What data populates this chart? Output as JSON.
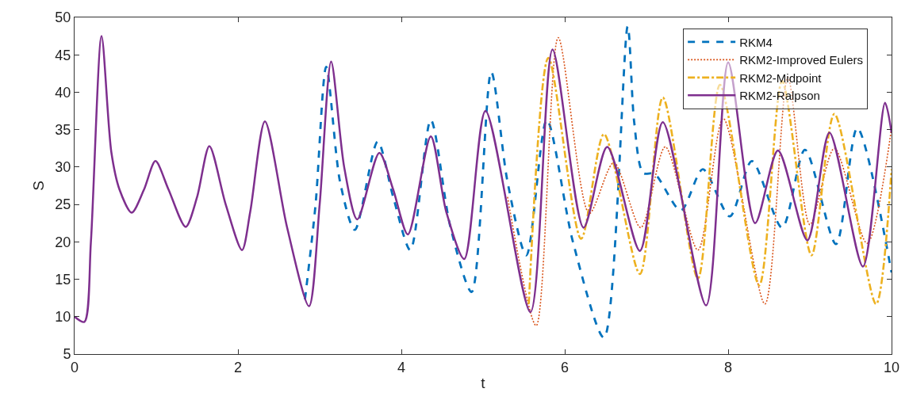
{
  "chart_data": {
    "type": "line",
    "xlabel": "t",
    "ylabel": "S",
    "xlim": [
      0,
      10
    ],
    "ylim": [
      5,
      50
    ],
    "xticks": [
      0,
      2,
      4,
      6,
      8,
      10
    ],
    "yticks": [
      5,
      10,
      15,
      20,
      25,
      30,
      35,
      40,
      45,
      50
    ],
    "grid": false,
    "legend": "top right",
    "marker": "none",
    "series": [
      {
        "name": "RKM4",
        "color": "#0072bd",
        "line_style": "dashed",
        "x": [
          2.82,
          2.95,
          3.08,
          3.25,
          3.43,
          3.71,
          3.9,
          4.11,
          4.36,
          4.6,
          4.86,
          5.1,
          5.3,
          5.53,
          5.78,
          6.1,
          6.48,
          6.77,
          6.85,
          6.96,
          7.1,
          7.42,
          7.69,
          8.02,
          8.29,
          8.66,
          8.94,
          9.32,
          9.58,
          10
        ],
        "values": [
          12.3,
          25,
          43.4,
          28,
          21.6,
          33.4,
          26,
          18.9,
          36.3,
          22,
          13.3,
          42.7,
          28,
          18.2,
          36.3,
          20,
          7.2,
          48.8,
          36,
          29.2,
          29.1,
          24.2,
          29.7,
          23.4,
          30.8,
          21.9,
          32.3,
          19.7,
          35.2,
          15.9
        ]
      },
      {
        "name": "RKM2-Improved Eulers",
        "color": "#d95319",
        "line_style": "dotted",
        "x": [
          5.3,
          5.65,
          5.92,
          6.3,
          6.6,
          6.93,
          7.23,
          7.63,
          7.94,
          8.45,
          8.73,
          9.0,
          9.3,
          9.7,
          10
        ],
        "values": [
          26,
          8.8,
          47.3,
          23.8,
          30.6,
          21.9,
          32.7,
          18.9,
          36.5,
          11.7,
          42,
          22.3,
          32.5,
          19.8,
          35.2
        ]
      },
      {
        "name": "RKM2-Midpoint",
        "color": "#edb120",
        "line_style": "dashdot",
        "x": [
          5.56,
          5.8,
          6.2,
          6.48,
          6.92,
          7.2,
          7.63,
          7.9,
          8.38,
          8.66,
          9.02,
          9.3,
          9.81,
          10
        ],
        "values": [
          11.7,
          44.6,
          20.4,
          34.4,
          15.7,
          39.3,
          15.1,
          41,
          14.2,
          41.5,
          18.2,
          37.1,
          11.7,
          29.7
        ]
      },
      {
        "name": "RKM2-Ralpson",
        "color": "#7e2f8e",
        "line_style": "solid",
        "x": [
          0,
          0.12,
          0.2,
          0.33,
          0.45,
          0.55,
          0.7,
          0.85,
          0.99,
          1.15,
          1.36,
          1.5,
          1.65,
          1.85,
          2.05,
          2.15,
          2.33,
          2.6,
          2.87,
          3.0,
          3.14,
          3.3,
          3.46,
          3.73,
          3.9,
          4.08,
          4.36,
          4.55,
          4.77,
          5.03,
          5.58,
          5.85,
          6.23,
          6.52,
          6.92,
          7.2,
          7.73,
          8.0,
          8.33,
          8.61,
          8.97,
          9.24,
          9.65,
          9.92,
          10
        ],
        "values": [
          10,
          9.3,
          20,
          47.5,
          32,
          27,
          23.9,
          27,
          30.8,
          27,
          22,
          26,
          32.8,
          25,
          18.9,
          24,
          36.1,
          22,
          11.4,
          25,
          44.1,
          30,
          23,
          31.9,
          27,
          21,
          34.1,
          24,
          17.7,
          37.5,
          10.6,
          45.7,
          21.9,
          32.7,
          18.8,
          36,
          11.5,
          44,
          22.5,
          32.2,
          20.2,
          34.6,
          16.7,
          38.6,
          34.6
        ]
      }
    ]
  }
}
